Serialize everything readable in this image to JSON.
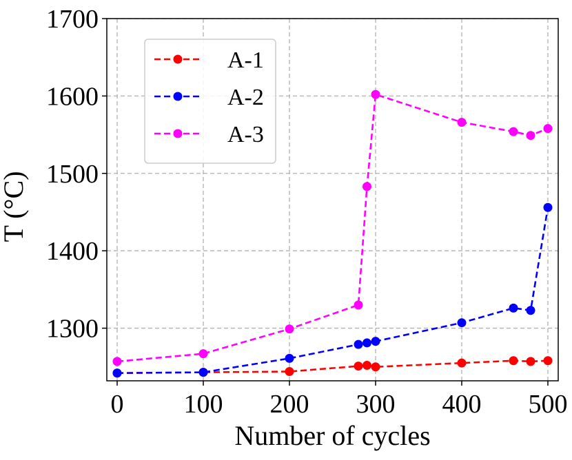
{
  "chart_data": {
    "type": "line",
    "title": "",
    "xlabel": "Number of cycles",
    "ylabel": "T (°C)",
    "xlim": [
      -12,
      512
    ],
    "ylim": [
      1232,
      1700
    ],
    "x_ticks": [
      0,
      100,
      200,
      300,
      400,
      500
    ],
    "y_ticks": [
      1300,
      1400,
      1500,
      1600,
      1700
    ],
    "grid": true,
    "legend_position": "top-left",
    "series": [
      {
        "name": "A-1",
        "color": "#ff0000",
        "x": [
          0,
          100,
          200,
          280,
          290,
          300,
          400,
          460,
          480,
          500
        ],
        "y": [
          1242,
          1243,
          1244,
          1251,
          1252,
          1250,
          1255,
          1258,
          1257,
          1258
        ]
      },
      {
        "name": "A-2",
        "color": "#0000ff",
        "x": [
          0,
          100,
          200,
          280,
          290,
          300,
          400,
          460,
          480,
          500
        ],
        "y": [
          1242,
          1243,
          1261,
          1279,
          1281,
          1283,
          1307,
          1326,
          1323,
          1456
        ]
      },
      {
        "name": "A-3",
        "color": "#ff00ff",
        "x": [
          0,
          100,
          200,
          280,
          290,
          300,
          400,
          460,
          480,
          500
        ],
        "y": [
          1257,
          1267,
          1299,
          1330,
          1483,
          1602,
          1566,
          1554,
          1549,
          1558
        ]
      }
    ]
  }
}
